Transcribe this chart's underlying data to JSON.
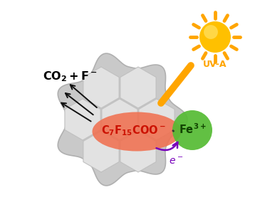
{
  "bg_color": "#ffffff",
  "zeolite_color": "#c9c9c9",
  "zeolite_edge_color": "#b0b0b0",
  "zeolite_inner_color": "#e2e2e2",
  "zeolite_inner_edge": "#c0c0c0",
  "sun_ray_color": "#FFA500",
  "sun_body_color": "#FFC000",
  "sun_highlight_color": "#FFE060",
  "pfoa_ellipse_color": "#F07050",
  "pfoa_text_color": "#CC1100",
  "fe_circle_color": "#55BB33",
  "fe_text_color": "#114400",
  "arrow_color": "#111111",
  "electron_arrow_color": "#7700BB",
  "electron_text_color": "#7700BB",
  "light_beam_color": "#FFA500",
  "uva_text_color": "#FFA500",
  "co2_text_color": "#000000",
  "dash_color": "#333333"
}
